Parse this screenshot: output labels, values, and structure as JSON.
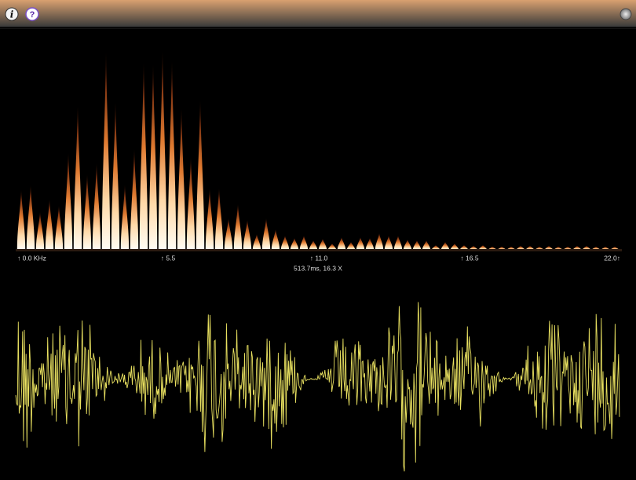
{
  "toolbar": {
    "info_icon": "i",
    "help_icon": "?"
  },
  "spectrum": {
    "axis_labels": [
      "↑ 0.0 KHz",
      "↑ 5.5",
      "↑ 11.0",
      "↑ 16.5",
      "22.0↑"
    ],
    "status": "513.7ms, 16.3 X",
    "levels": [
      76,
      82,
      48,
      64,
      56,
      123,
      183,
      96,
      110,
      251,
      188,
      83,
      128,
      238,
      236,
      253,
      240,
      180,
      118,
      190,
      78,
      78,
      40,
      58,
      38,
      20,
      40,
      26,
      18,
      15,
      18,
      12,
      14,
      8,
      16,
      10,
      16,
      15,
      21,
      18,
      18,
      13,
      12,
      12,
      6,
      10,
      8,
      6,
      5,
      6,
      4,
      4,
      4,
      5,
      5,
      4,
      5,
      4,
      4,
      5,
      5,
      4,
      4,
      4
    ]
  }
}
